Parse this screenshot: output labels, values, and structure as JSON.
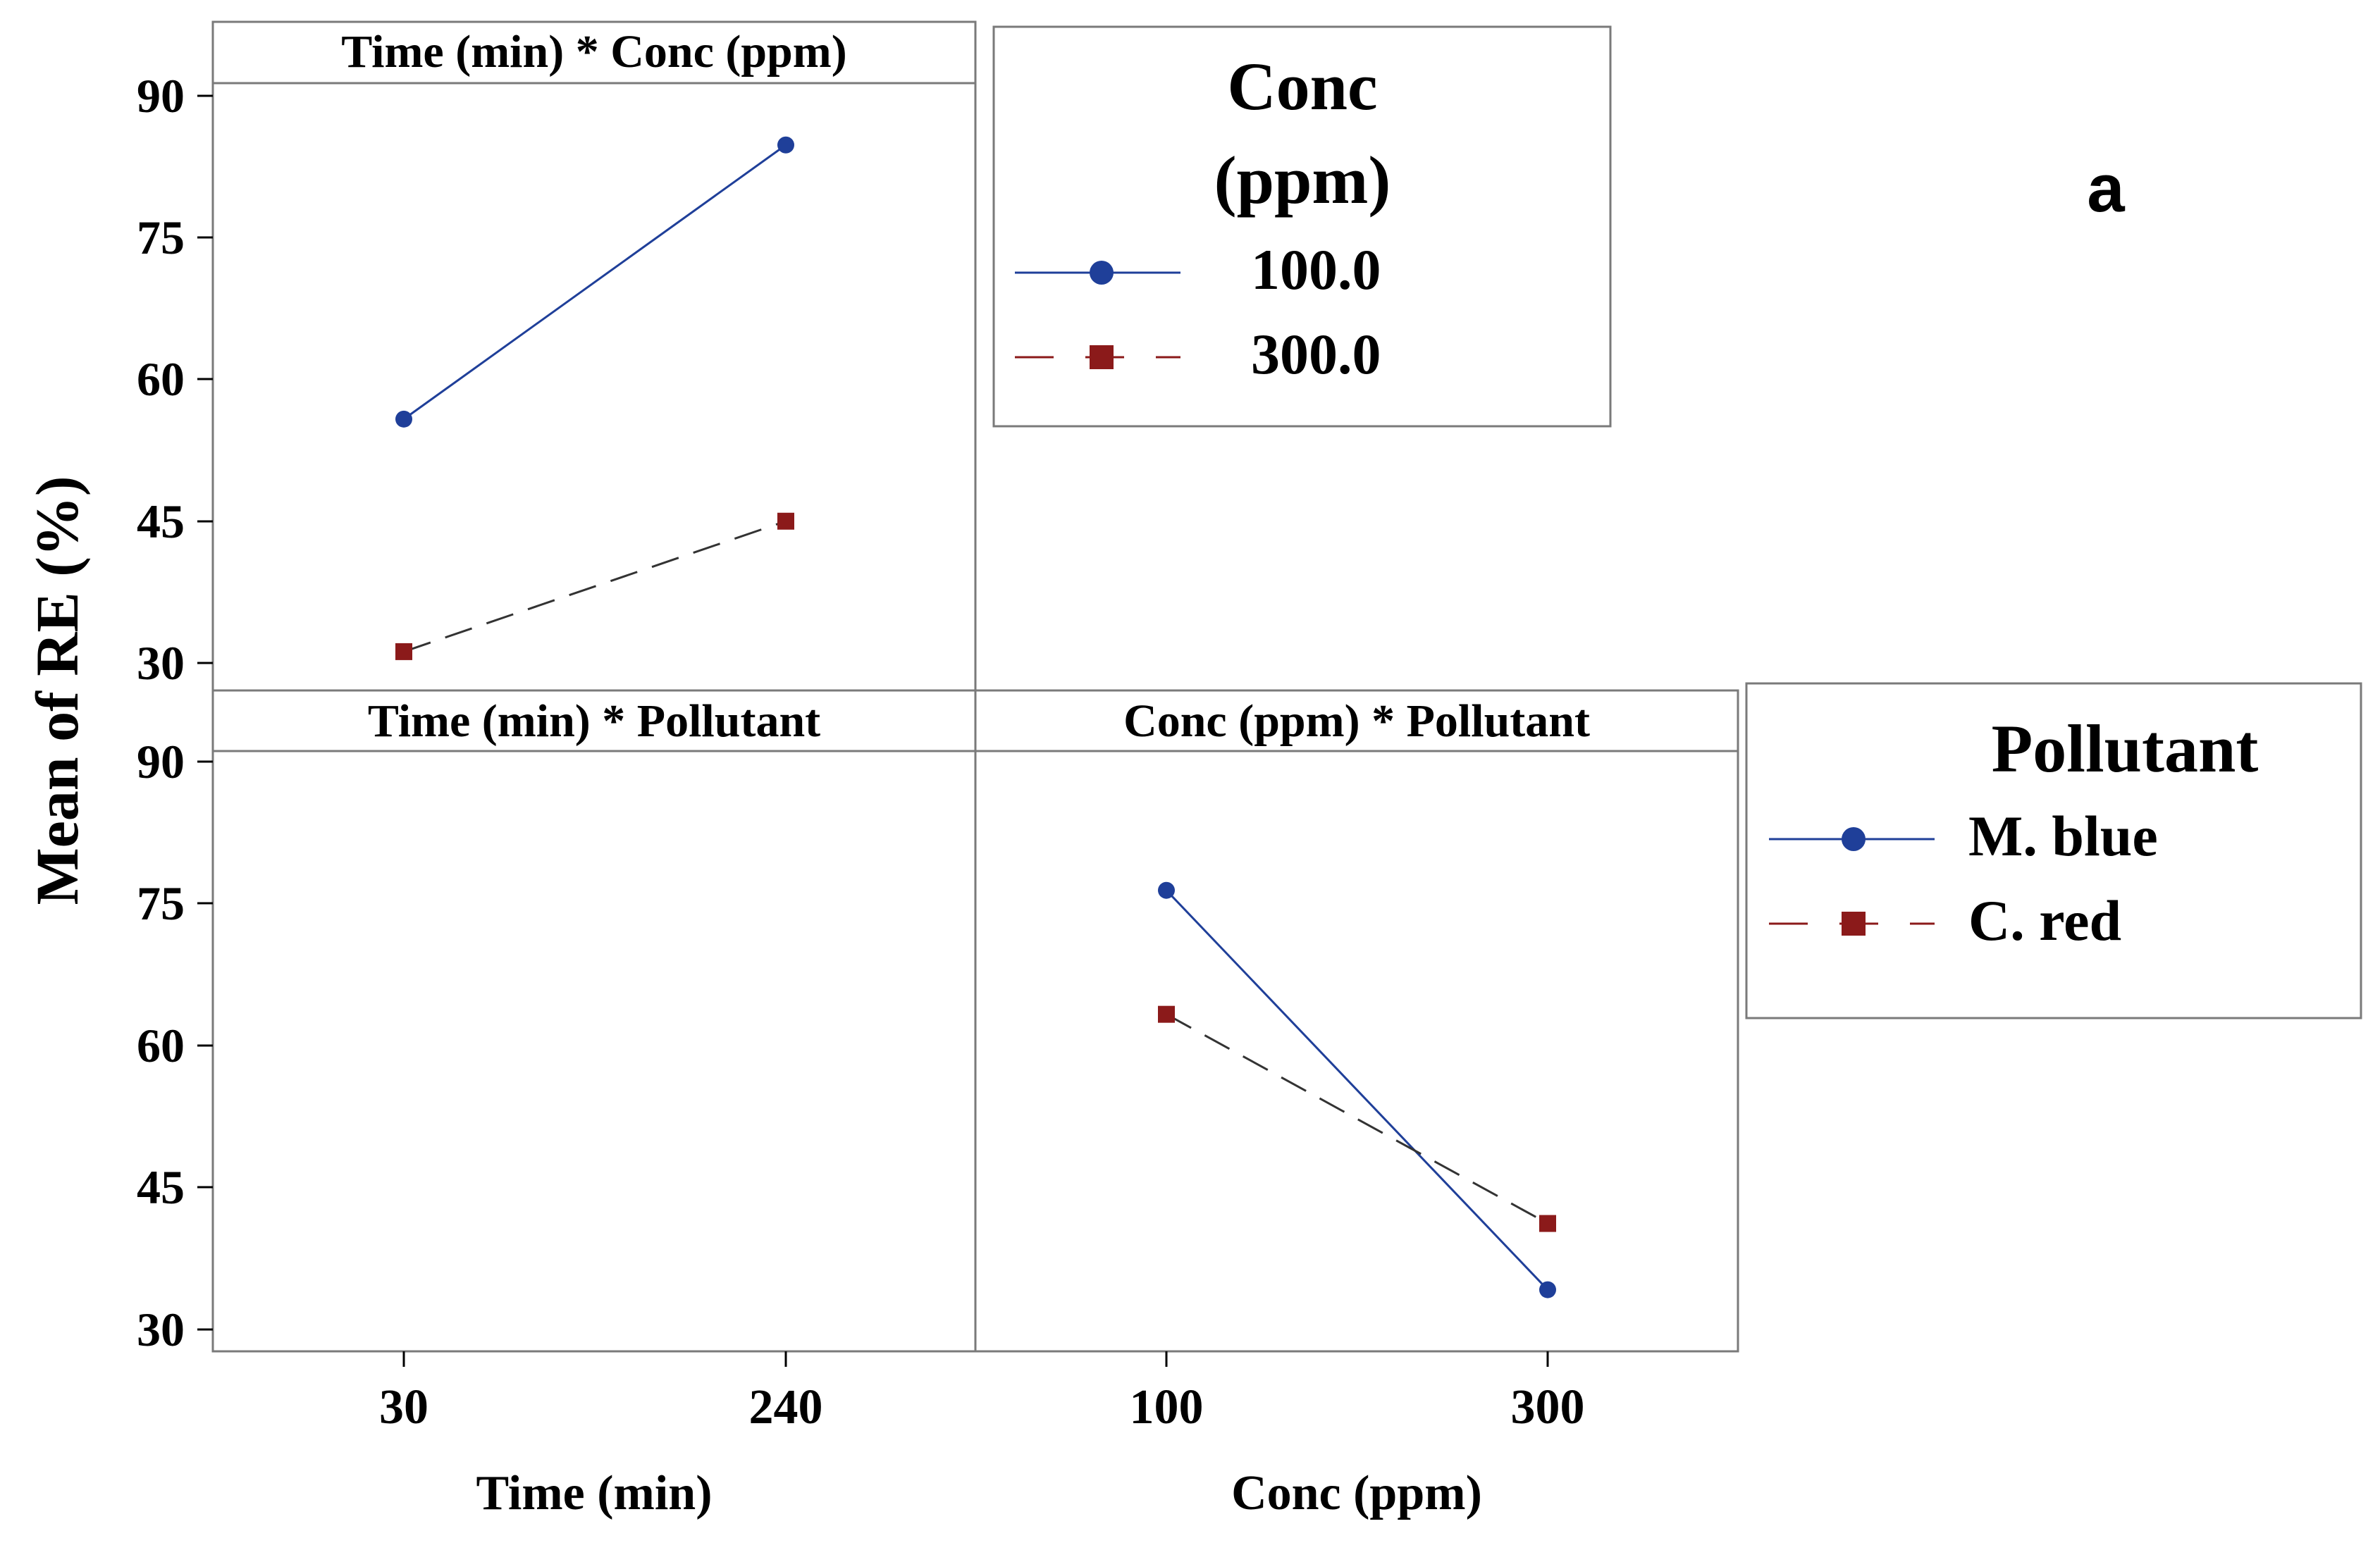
{
  "panel_label": "a",
  "y_axis_label": "Mean of RE (%)",
  "y_ticks": [
    "30",
    "45",
    "60",
    "75",
    "90"
  ],
  "x_axes": [
    {
      "label": "Time (min)",
      "ticks": [
        "30",
        "240"
      ]
    },
    {
      "label": "Conc (ppm)",
      "ticks": [
        "100",
        "300"
      ]
    }
  ],
  "legends": [
    {
      "title_line1": "Conc",
      "title_line2": "(ppm)",
      "entries": [
        {
          "label": "100.0",
          "style": "solid-circle",
          "color": "#1f3f99"
        },
        {
          "label": "300.0",
          "style": "dashed-square",
          "color": "#8b1a1a"
        }
      ]
    },
    {
      "title_line1": "Pollutant",
      "entries": [
        {
          "label": "M. blue",
          "style": "solid-circle",
          "color": "#1f3f99"
        },
        {
          "label": "C. red",
          "style": "dashed-square",
          "color": "#8b1a1a"
        }
      ]
    }
  ],
  "chart_data": [
    {
      "type": "line",
      "title": "Time (min) * Conc (ppm)",
      "xlabel": "Time (min)",
      "ylabel": "Mean of RE (%)",
      "categories": [
        "30",
        "240"
      ],
      "ylim": [
        28,
        93
      ],
      "legend_title": "Conc (ppm)",
      "series": [
        {
          "name": "100.0",
          "values": [
            55.8,
            84.8
          ],
          "color": "#1f3f99",
          "marker": "circle",
          "dash": false
        },
        {
          "name": "300.0",
          "values": [
            31.2,
            45.0
          ],
          "color": "#8b1a1a",
          "marker": "square",
          "dash": true
        }
      ]
    },
    {
      "type": "line",
      "title": "Time (min) * Pollutant",
      "xlabel": "Time (min)",
      "ylabel": "Mean of RE (%)",
      "categories": [
        "30",
        "240"
      ],
      "ylim": [
        28,
        93
      ],
      "legend_title": "Pollutant",
      "series": []
    },
    {
      "type": "line",
      "title": "Conc (ppm) * Pollutant",
      "xlabel": "Conc (ppm)",
      "ylabel": "Mean of RE (%)",
      "categories": [
        "100",
        "300"
      ],
      "ylim": [
        28,
        93
      ],
      "legend_title": "Pollutant",
      "series": [
        {
          "name": "M. blue",
          "values": [
            76.4,
            34.2
          ],
          "color": "#1f3f99",
          "marker": "circle",
          "dash": false
        },
        {
          "name": "C. red",
          "values": [
            63.3,
            41.2
          ],
          "color": "#8b1a1a",
          "marker": "square",
          "dash": true
        }
      ]
    }
  ]
}
